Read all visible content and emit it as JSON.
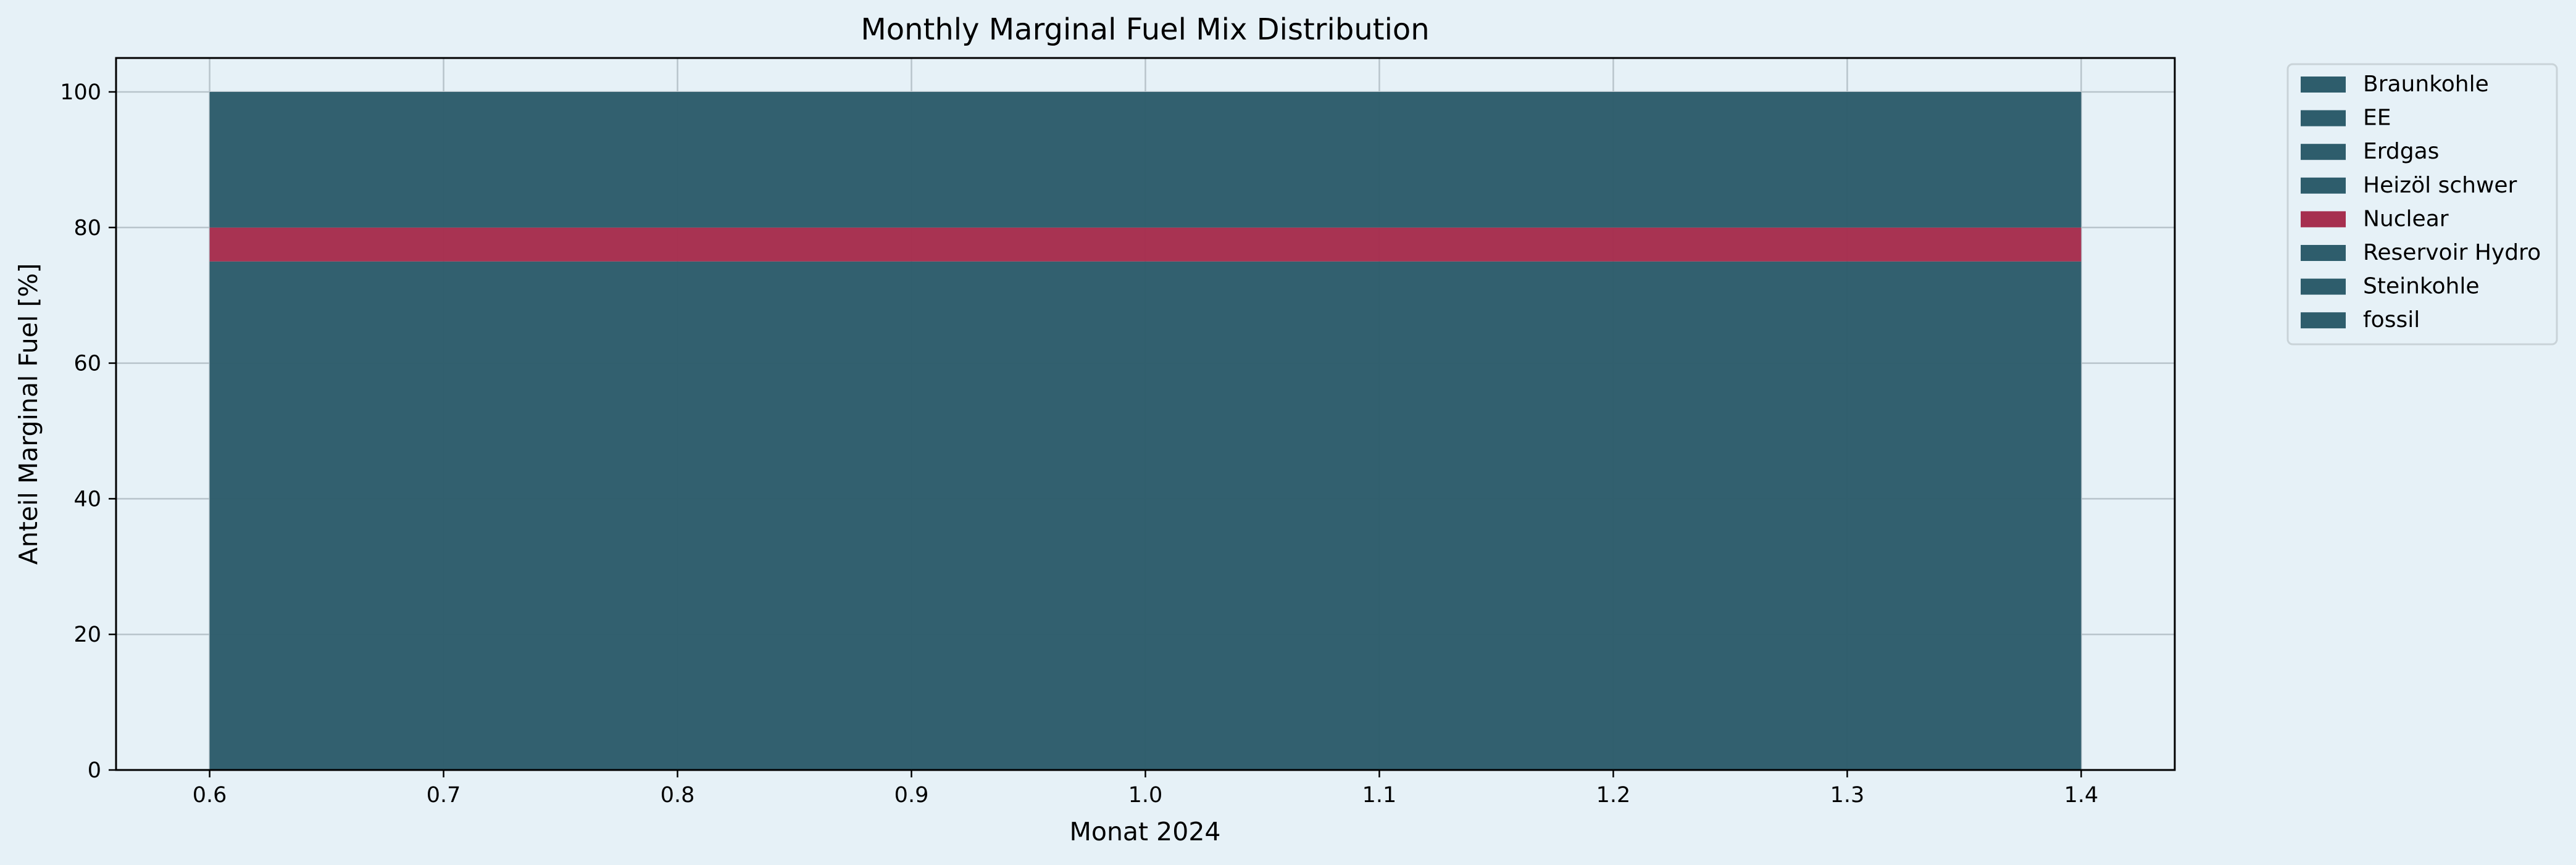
{
  "chart_data": {
    "type": "area",
    "title": "Monthly Marginal Fuel Mix Distribution",
    "xlabel": "Monat 2024",
    "ylabel": "Anteil Marginal Fuel [%]",
    "x": [
      0.6,
      1.4
    ],
    "xlim": [
      0.56,
      1.44
    ],
    "ylim": [
      0,
      105
    ],
    "xticks": [
      "0.6",
      "0.7",
      "0.8",
      "0.9",
      "1.0",
      "1.1",
      "1.2",
      "1.3",
      "1.4"
    ],
    "yticks": [
      "0",
      "20",
      "40",
      "60",
      "80",
      "100"
    ],
    "grid": true,
    "legend_position": "outside-top-right",
    "stacked": true,
    "series": [
      {
        "name": "Braunkohle",
        "values": [
          0,
          0
        ],
        "color": "#2e5d6c"
      },
      {
        "name": "EE",
        "values": [
          0,
          0
        ],
        "color": "#2e5d6c"
      },
      {
        "name": "Erdgas",
        "values": [
          75,
          75
        ],
        "color": "#2e5d6c"
      },
      {
        "name": "Heizöl schwer",
        "values": [
          0,
          0
        ],
        "color": "#2e5d6c"
      },
      {
        "name": "Nuclear",
        "values": [
          5,
          5
        ],
        "color": "#a62f4f"
      },
      {
        "name": "Reservoir Hydro",
        "values": [
          0,
          0
        ],
        "color": "#2e5d6c"
      },
      {
        "name": "Steinkohle",
        "values": [
          20,
          20
        ],
        "color": "#2e5d6c"
      },
      {
        "name": "fossil",
        "values": [
          0,
          0
        ],
        "color": "#2e5d6c"
      }
    ]
  }
}
